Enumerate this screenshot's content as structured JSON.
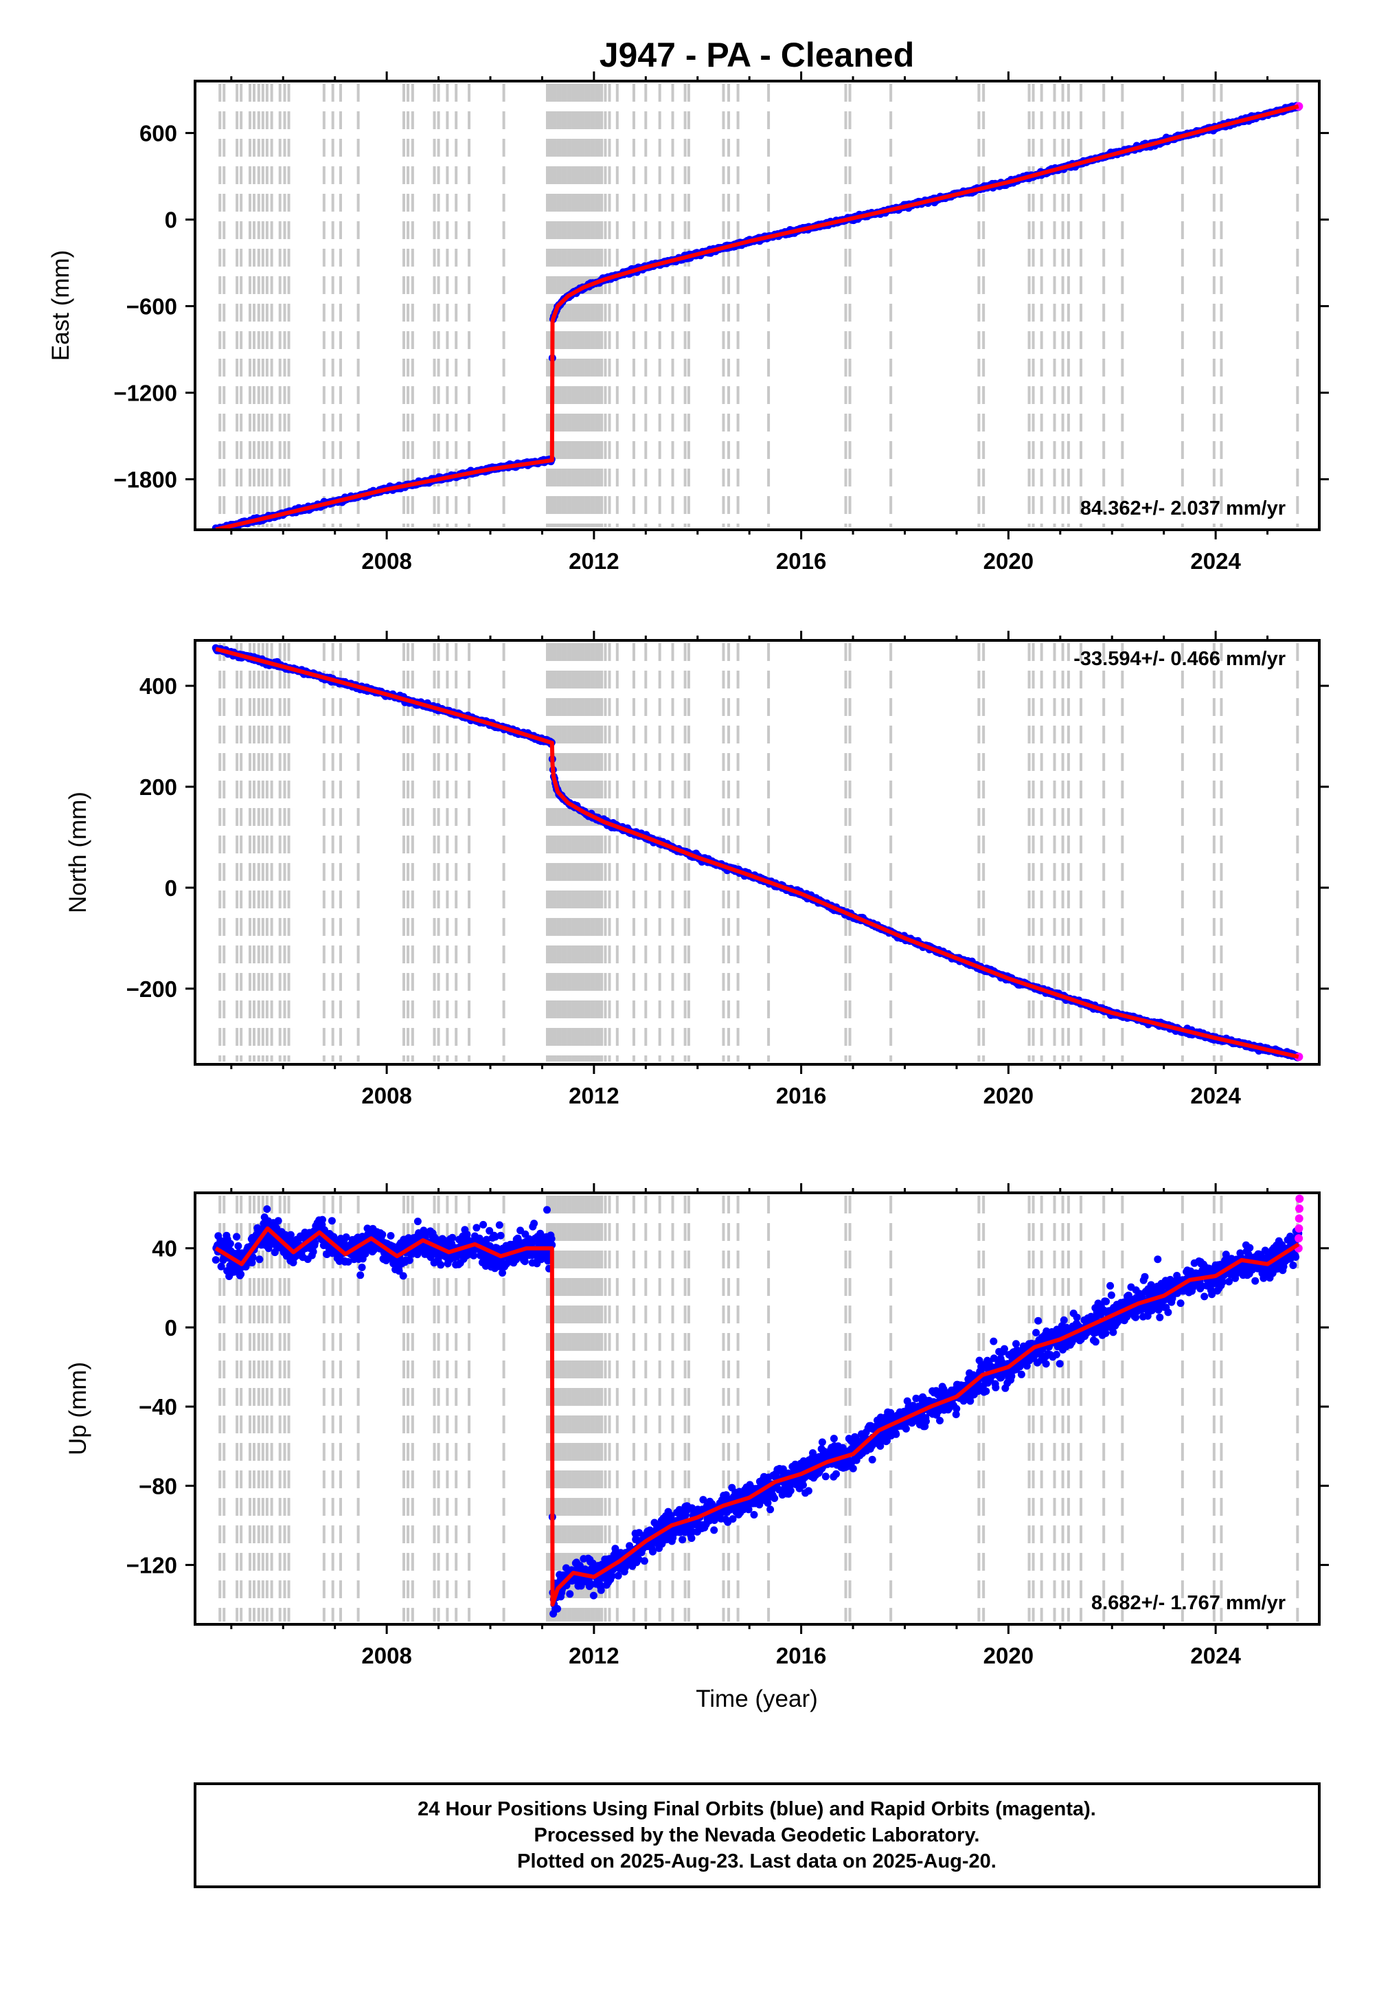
{
  "chart_data": {
    "type": "scatter",
    "title": "J947  - PA - Cleaned",
    "xlabel": "Time (year)",
    "xlim": [
      2004.3,
      2026.0
    ],
    "x_ticks": [
      2008,
      2012,
      2016,
      2020,
      2024
    ],
    "x_tick_labels": [
      "2008",
      "2012",
      "2016",
      "2020",
      "2024"
    ],
    "equipment_change_years": [
      2004.78,
      2004.86,
      2005.11,
      2005.19,
      2005.36,
      2005.44,
      2005.53,
      2005.61,
      2005.69,
      2005.78,
      2005.94,
      2006.03,
      2006.11,
      2006.79,
      2006.96,
      2007.11,
      2007.45,
      2008.33,
      2008.41,
      2008.5,
      2008.92,
      2009.0,
      2009.17,
      2009.34,
      2009.59,
      2010.26,
      2011.1,
      2011.15,
      2011.2,
      2011.25,
      2011.3,
      2011.35,
      2011.4,
      2011.45,
      2011.5,
      2011.55,
      2011.6,
      2011.65,
      2011.7,
      2011.75,
      2011.8,
      2011.85,
      2011.9,
      2011.95,
      2012.0,
      2012.05,
      2012.1,
      2012.15,
      2012.22,
      2012.3,
      2012.45,
      2012.77,
      2013.0,
      2013.27,
      2013.52,
      2013.76,
      2013.83,
      2014.5,
      2014.6,
      2014.78,
      2015.37,
      2016.86,
      2016.94,
      2017.73,
      2019.43,
      2019.52,
      2020.4,
      2020.48,
      2020.64,
      2020.89,
      2021.05,
      2021.16,
      2021.4,
      2021.84,
      2022.2,
      2023.36,
      2023.97,
      2024.11,
      2025.58
    ],
    "panels": [
      {
        "ylabel": "East (mm)",
        "ylim": [
          -2150,
          960
        ],
        "y_ticks": [
          -1800,
          -1200,
          -600,
          0,
          600
        ],
        "y_tick_labels": [
          "−1800",
          "−1200",
          "−600",
          "0",
          "600"
        ],
        "rate_label": "84.362+/- 2.037 mm/yr",
        "rate_position": "bottom-right",
        "model_x": [
          2004.7,
          2006,
          2008,
          2010,
          2011.19,
          2011.2,
          2011.22,
          2011.3,
          2011.5,
          2011.8,
          2012.2,
          2013,
          2014,
          2015,
          2016,
          2018,
          2020,
          2022,
          2024,
          2025.6
        ],
        "model_y": [
          -2148,
          -2040,
          -1870,
          -1730,
          -1668,
          -705,
          -680,
          -600,
          -530,
          -470,
          -415,
          -330,
          -240,
          -150,
          -70,
          90,
          260,
          450,
          640,
          785
        ],
        "final_series_color": "#0000ff",
        "rapid_series_color": "#ff00ff",
        "model_color": "#ff0000",
        "rapid_last": [
          2025.6,
          785
        ],
        "scatter_sd": 9,
        "ymin_clip": -2150
      },
      {
        "ylabel": "North (mm)",
        "ylim": [
          -350,
          490
        ],
        "y_ticks": [
          -200,
          0,
          200,
          400
        ],
        "y_tick_labels": [
          "−200",
          "0",
          "200",
          "400"
        ],
        "rate_label": "-33.594+/- 0.466 mm/yr",
        "rate_position": "top-right",
        "model_x": [
          2004.7,
          2006,
          2008,
          2010,
          2011.19,
          2011.2,
          2011.22,
          2011.3,
          2011.5,
          2011.8,
          2012.2,
          2013,
          2014,
          2015,
          2016,
          2018,
          2020,
          2022,
          2024,
          2025.6
        ],
        "model_y": [
          473,
          438,
          383,
          325,
          287,
          245,
          220,
          190,
          168,
          150,
          130,
          100,
          60,
          25,
          -12,
          -100,
          -180,
          -248,
          -298,
          -335
        ],
        "final_series_color": "#0000ff",
        "rapid_series_color": "#ff00ff",
        "model_color": "#ff0000",
        "rapid_last": [
          2025.6,
          -335
        ],
        "scatter_sd": 3,
        "ymin_clip": -350
      },
      {
        "ylabel": "Up (mm)",
        "ylim": [
          -150,
          68
        ],
        "y_ticks": [
          -120,
          -80,
          -40,
          0,
          40
        ],
        "y_tick_labels": [
          "−120",
          "−80",
          "−40",
          "0",
          "40"
        ],
        "rate_label": "8.682+/- 1.767 mm/yr",
        "rate_position": "bottom-right",
        "model_x": [
          2004.7,
          2005.2,
          2005.7,
          2006.2,
          2006.7,
          2007.2,
          2007.7,
          2008.2,
          2008.7,
          2009.2,
          2009.7,
          2010.2,
          2010.7,
          2011.19,
          2011.2,
          2011.3,
          2011.6,
          2012,
          2012.5,
          2013,
          2013.5,
          2014,
          2014.5,
          2015,
          2015.5,
          2016,
          2016.5,
          2017,
          2017.5,
          2018,
          2018.5,
          2019,
          2019.5,
          2020,
          2020.5,
          2021,
          2021.5,
          2022,
          2022.5,
          2023,
          2023.5,
          2024,
          2024.5,
          2025,
          2025.6
        ],
        "model_y": [
          40,
          32,
          50,
          38,
          48,
          37,
          45,
          36,
          44,
          38,
          42,
          36,
          40,
          40,
          -140,
          -132,
          -124,
          -126,
          -118,
          -108,
          -100,
          -96,
          -90,
          -86,
          -78,
          -74,
          -68,
          -64,
          -52,
          -46,
          -40,
          -35,
          -24,
          -20,
          -10,
          -6,
          0,
          6,
          12,
          16,
          24,
          26,
          34,
          32,
          42
        ],
        "final_series_color": "#0000ff",
        "rapid_series_color": "#ff00ff",
        "model_color": "#ff0000",
        "rapid_last": [
          2025.6,
          50
        ],
        "scatter_sd": 5.5,
        "ymin_clip": -150
      }
    ]
  },
  "footer": {
    "line1": "24 Hour Positions Using Final Orbits (blue) and Rapid Orbits (magenta).",
    "line2": "Processed by the Nevada Geodetic Laboratory.",
    "line3": "Plotted on 2025-Aug-23. Last data on 2025-Aug-20."
  }
}
